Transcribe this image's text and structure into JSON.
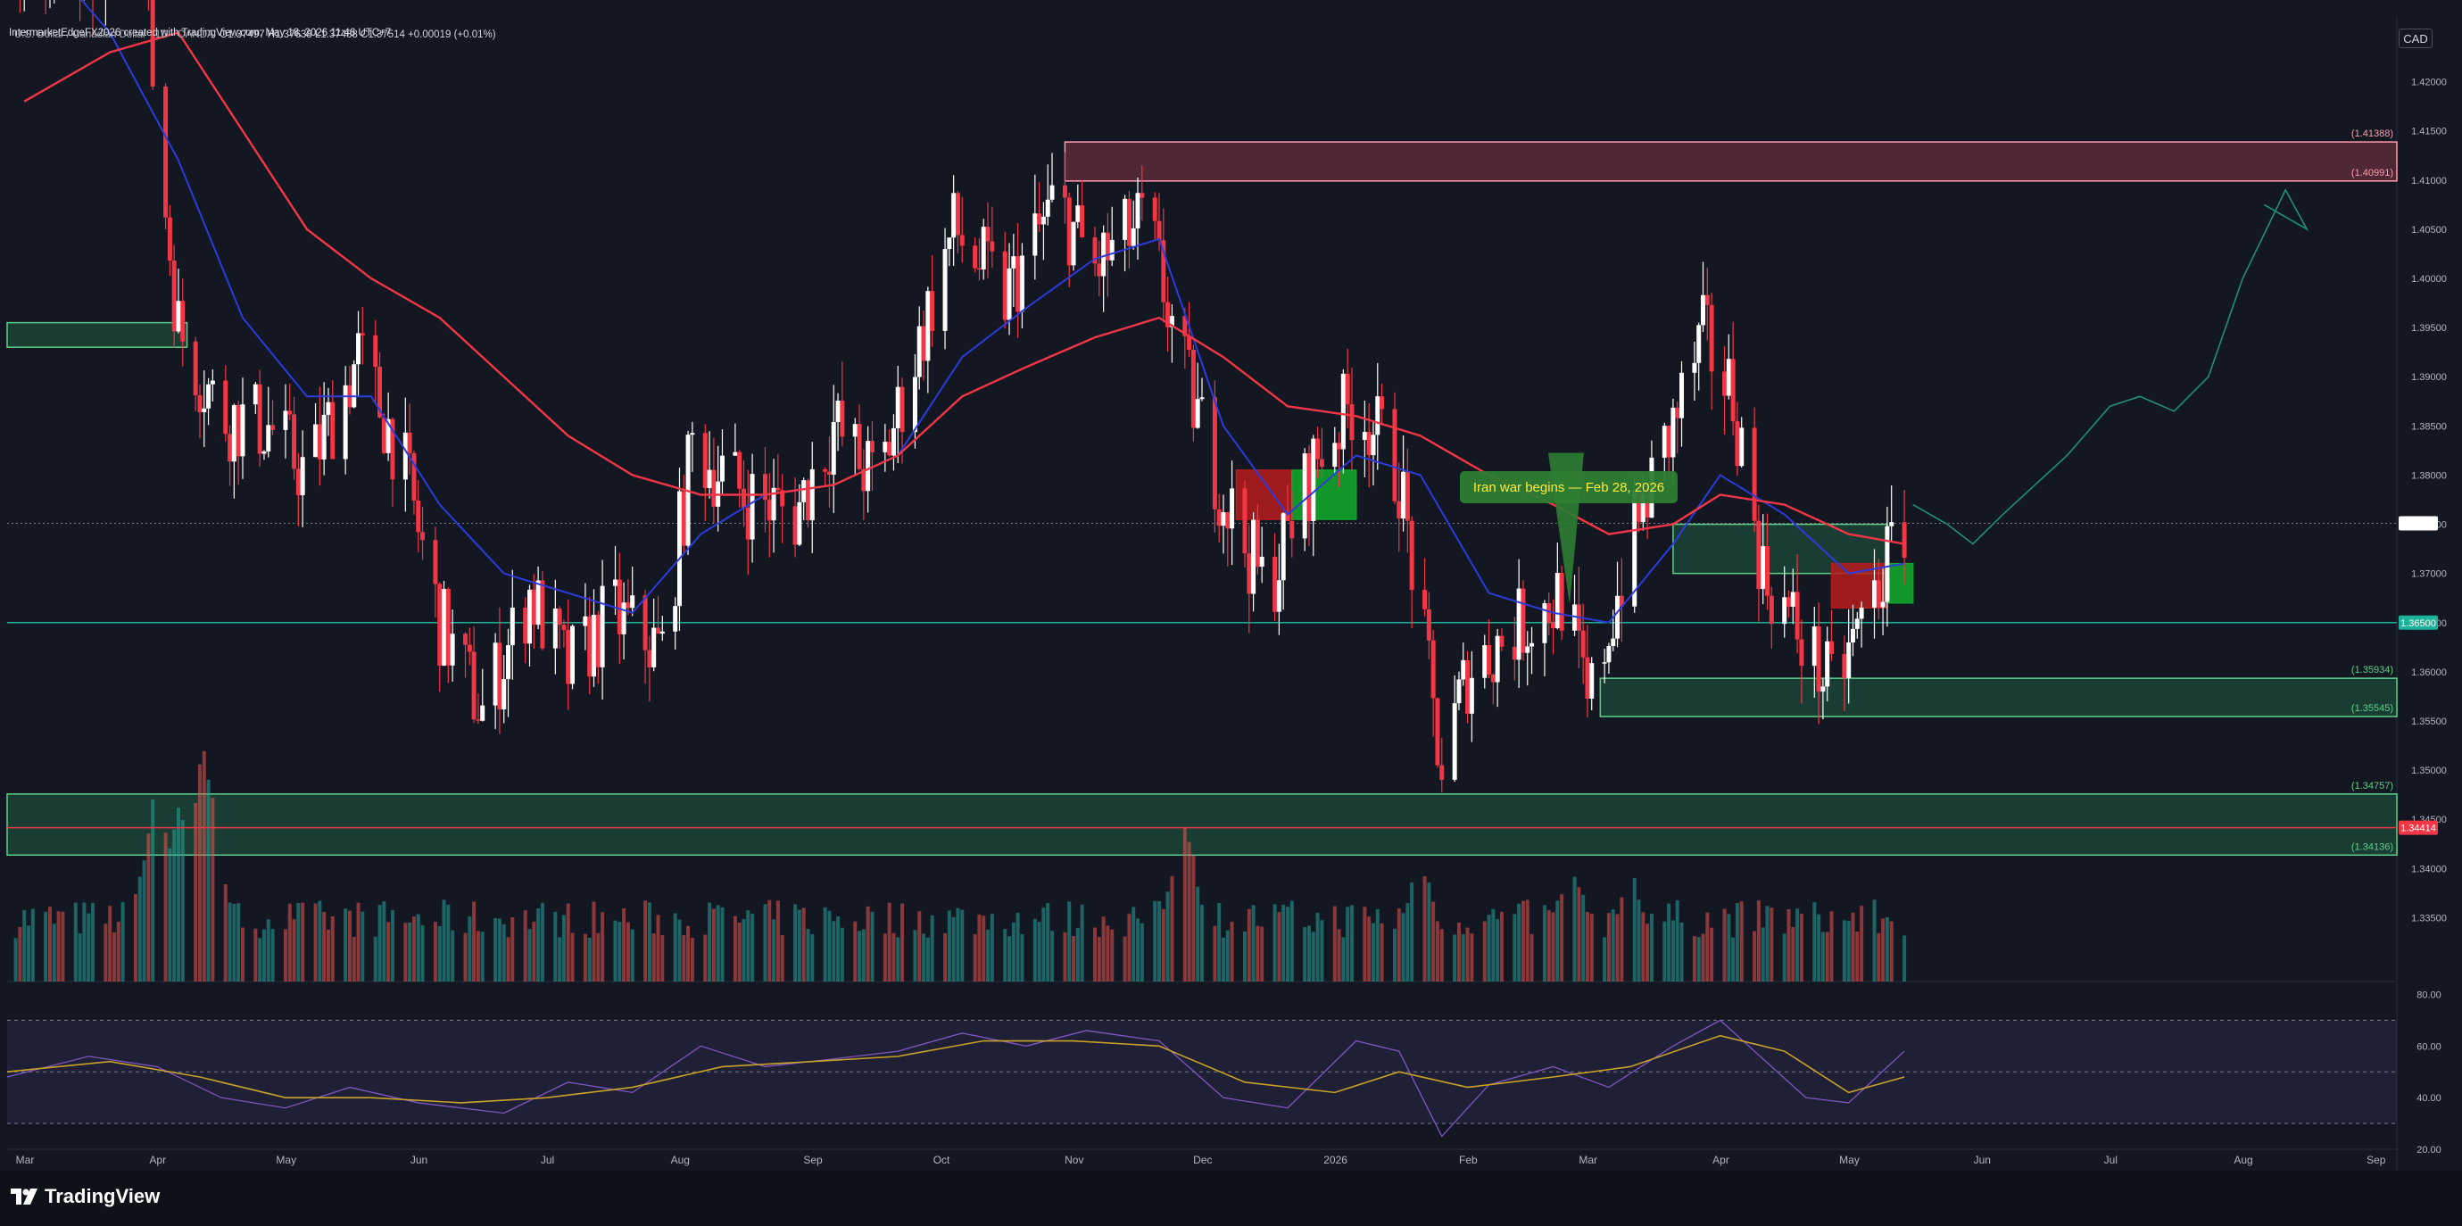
{
  "header": {
    "created_by": "IntermarketEdgeFX2026 created with TradingView.com, May 18, 2026 11:46 UTC+7",
    "symbol": "U.S. Dollar / Canadian Dollar · 1D · OANDA",
    "ohlc": "O1.37497 H1.37638 L1.37488 C1.37514 +0.00019 (+0.01%)"
  },
  "currency_button": "CAD",
  "brand": "TradingView",
  "colors": {
    "background": "#131722",
    "up_candle": "#ffffff",
    "down_candle": "#f23645",
    "ema_fast": "#2d3bdc",
    "ema_slow": "#f23645",
    "support_zone": "#1f5c3f",
    "resistance_zone": "#5c2a37",
    "rsi_line": "#7e57c2",
    "rsi_signal": "#c9a227",
    "horizontal_level": "#1cb39a"
  },
  "chart_data": {
    "type": "candlestick",
    "title": "U.S. Dollar / Canadian Dollar · 1D · OANDA",
    "price_axis": {
      "ylim": [
        1.3285,
        1.4265
      ],
      "ticks": [
        "1.42000",
        "1.41500",
        "1.41000",
        "1.40500",
        "1.40000",
        "1.39500",
        "1.39000",
        "1.38500",
        "1.38000",
        "1.37500",
        "1.37000",
        "1.36500",
        "1.36000",
        "1.35500",
        "1.35000",
        "1.34500",
        "1.34000",
        "1.33500"
      ]
    },
    "time_axis": {
      "start": "2025-03-01",
      "end": "2026-09-10",
      "ticks": [
        {
          "label": "Mar",
          "date": "2025-03-01"
        },
        {
          "label": "Apr",
          "date": "2025-04-01"
        },
        {
          "label": "May",
          "date": "2025-05-01"
        },
        {
          "label": "Jun",
          "date": "2025-06-01"
        },
        {
          "label": "Jul",
          "date": "2025-07-01"
        },
        {
          "label": "Aug",
          "date": "2025-08-01"
        },
        {
          "label": "Sep",
          "date": "2025-09-01"
        },
        {
          "label": "Oct",
          "date": "2025-10-01"
        },
        {
          "label": "Nov",
          "date": "2025-11-01"
        },
        {
          "label": "Dec",
          "date": "2025-12-01"
        },
        {
          "label": "2026",
          "date": "2026-01-01"
        },
        {
          "label": "Feb",
          "date": "2026-02-01"
        },
        {
          "label": "Mar",
          "date": "2026-03-01"
        },
        {
          "label": "Apr",
          "date": "2026-04-01"
        },
        {
          "label": "May",
          "date": "2026-05-01"
        },
        {
          "label": "Jun",
          "date": "2026-06-01"
        },
        {
          "label": "Jul",
          "date": "2026-07-01"
        },
        {
          "label": "Aug",
          "date": "2026-08-01"
        },
        {
          "label": "Sep",
          "date": "2026-09-01"
        }
      ]
    },
    "price_path": [
      [
        "2025-03-01",
        1.435
      ],
      [
        "2025-03-20",
        1.43
      ],
      [
        "2025-04-01",
        1.438
      ],
      [
        "2025-04-05",
        1.415
      ],
      [
        "2025-04-10",
        1.395
      ],
      [
        "2025-04-20",
        1.386
      ],
      [
        "2025-05-01",
        1.385
      ],
      [
        "2025-05-10",
        1.38
      ],
      [
        "2025-05-22",
        1.392
      ],
      [
        "2025-06-01",
        1.382
      ],
      [
        "2025-06-10",
        1.365
      ],
      [
        "2025-06-20",
        1.356
      ],
      [
        "2025-07-01",
        1.368
      ],
      [
        "2025-07-10",
        1.36
      ],
      [
        "2025-07-20",
        1.366
      ],
      [
        "2025-08-01",
        1.362
      ],
      [
        "2025-08-08",
        1.383
      ],
      [
        "2025-08-20",
        1.378
      ],
      [
        "2025-09-01",
        1.376
      ],
      [
        "2025-09-10",
        1.385
      ],
      [
        "2025-09-20",
        1.379
      ],
      [
        "2025-10-01",
        1.395
      ],
      [
        "2025-10-08",
        1.405
      ],
      [
        "2025-10-20",
        1.398
      ],
      [
        "2025-11-01",
        1.408
      ],
      [
        "2025-11-10",
        1.401
      ],
      [
        "2025-11-22",
        1.406
      ],
      [
        "2025-12-01",
        1.39
      ],
      [
        "2025-12-10",
        1.378
      ],
      [
        "2025-12-20",
        1.368
      ],
      [
        "2026-01-01",
        1.382
      ],
      [
        "2026-01-10",
        1.388
      ],
      [
        "2026-01-20",
        1.38
      ],
      [
        "2026-01-30",
        1.35
      ],
      [
        "2026-02-05",
        1.36
      ],
      [
        "2026-02-15",
        1.364
      ],
      [
        "2026-02-28",
        1.368
      ],
      [
        "2026-03-05",
        1.356
      ],
      [
        "2026-03-15",
        1.373
      ],
      [
        "2026-03-25",
        1.385
      ],
      [
        "2026-04-01",
        1.394
      ],
      [
        "2026-04-08",
        1.388
      ],
      [
        "2026-04-15",
        1.37
      ],
      [
        "2026-04-22",
        1.365
      ],
      [
        "2026-05-01",
        1.358
      ],
      [
        "2026-05-08",
        1.365
      ],
      [
        "2026-05-18",
        1.3751
      ]
    ],
    "ema_fast_path": [
      [
        "2025-03-05",
        1.435
      ],
      [
        "2025-03-25",
        1.425
      ],
      [
        "2025-04-10",
        1.412
      ],
      [
        "2025-04-25",
        1.396
      ],
      [
        "2025-05-10",
        1.388
      ],
      [
        "2025-05-25",
        1.388
      ],
      [
        "2025-06-10",
        1.377
      ],
      [
        "2025-06-25",
        1.37
      ],
      [
        "2025-07-10",
        1.368
      ],
      [
        "2025-07-25",
        1.366
      ],
      [
        "2025-08-10",
        1.374
      ],
      [
        "2025-08-25",
        1.378
      ],
      [
        "2025-09-10",
        1.379
      ],
      [
        "2025-09-25",
        1.382
      ],
      [
        "2025-10-10",
        1.392
      ],
      [
        "2025-10-25",
        1.397
      ],
      [
        "2025-11-10",
        1.402
      ],
      [
        "2025-11-25",
        1.404
      ],
      [
        "2025-12-10",
        1.385
      ],
      [
        "2025-12-25",
        1.376
      ],
      [
        "2026-01-10",
        1.382
      ],
      [
        "2026-01-25",
        1.38
      ],
      [
        "2026-02-10",
        1.368
      ],
      [
        "2026-02-25",
        1.366
      ],
      [
        "2026-03-10",
        1.365
      ],
      [
        "2026-03-25",
        1.373
      ],
      [
        "2026-04-05",
        1.38
      ],
      [
        "2026-04-20",
        1.376
      ],
      [
        "2026-05-05",
        1.37
      ],
      [
        "2026-05-18",
        1.371
      ]
    ],
    "ema_slow_path": [
      [
        "2025-03-05",
        1.418
      ],
      [
        "2025-03-25",
        1.423
      ],
      [
        "2025-04-10",
        1.425
      ],
      [
        "2025-04-25",
        1.415
      ],
      [
        "2025-05-10",
        1.405
      ],
      [
        "2025-05-25",
        1.4
      ],
      [
        "2025-06-10",
        1.396
      ],
      [
        "2025-06-25",
        1.39
      ],
      [
        "2025-07-10",
        1.384
      ],
      [
        "2025-07-25",
        1.38
      ],
      [
        "2025-08-10",
        1.378
      ],
      [
        "2025-08-25",
        1.378
      ],
      [
        "2025-09-10",
        1.379
      ],
      [
        "2025-09-25",
        1.382
      ],
      [
        "2025-10-10",
        1.388
      ],
      [
        "2025-10-25",
        1.391
      ],
      [
        "2025-11-10",
        1.394
      ],
      [
        "2025-11-25",
        1.396
      ],
      [
        "2025-12-10",
        1.392
      ],
      [
        "2025-12-25",
        1.387
      ],
      [
        "2026-01-10",
        1.386
      ],
      [
        "2026-01-25",
        1.384
      ],
      [
        "2026-02-10",
        1.38
      ],
      [
        "2026-02-25",
        1.377
      ],
      [
        "2026-03-10",
        1.374
      ],
      [
        "2026-03-25",
        1.375
      ],
      [
        "2026-04-05",
        1.378
      ],
      [
        "2026-04-20",
        1.377
      ],
      [
        "2026-05-05",
        1.374
      ],
      [
        "2026-05-18",
        1.373
      ]
    ],
    "zones": [
      {
        "from": "2025-11-03",
        "to": "2026-09-10",
        "top": 1.41388,
        "bottom": 1.40991,
        "kind": "resistance"
      },
      {
        "from": "2025-03-01",
        "to": "2025-04-12",
        "top": 1.3955,
        "bottom": 1.393,
        "kind": "support"
      },
      {
        "from": "2026-03-08",
        "to": "2026-09-10",
        "top": 1.35934,
        "bottom": 1.35545,
        "kind": "support"
      },
      {
        "from": "2025-03-01",
        "to": "2026-09-10",
        "top": 1.34757,
        "bottom": 1.34136,
        "kind": "support"
      },
      {
        "from": "2026-03-25",
        "to": "2026-05-14",
        "top": 1.375,
        "bottom": 1.37,
        "kind": "support"
      },
      {
        "from": "2025-12-13",
        "to": "2025-12-26",
        "top": 1.3805,
        "bottom": 1.3755,
        "kind": "demand-red"
      },
      {
        "from": "2025-12-26",
        "to": "2026-01-10",
        "top": 1.3805,
        "bottom": 1.3755,
        "kind": "demand-green"
      },
      {
        "from": "2026-05-01",
        "to": "2026-05-14",
        "top": 1.371,
        "bottom": 1.3665,
        "kind": "demand-red"
      },
      {
        "from": "2026-05-14",
        "to": "2026-05-20",
        "top": 1.371,
        "bottom": 1.367,
        "kind": "demand-green"
      }
    ],
    "levels": [
      {
        "price": 1.365,
        "label": "1.36500",
        "color": "#1cb39a",
        "style": "solid"
      },
      {
        "price": 1.34414,
        "label": "1.34414",
        "color": "#f23645",
        "style": "solid"
      },
      {
        "price": 1.3751,
        "label": "1.37514",
        "color": "#787b86",
        "style": "dotted"
      }
    ],
    "level_labels": [
      "(1.41388)",
      "(1.40991)",
      "(1.35934)",
      "(1.35545)",
      "(1.34757)",
      "(1.34136)"
    ],
    "annotation": {
      "text": "Iran war begins — Feb 28, 2026",
      "anchor_date": "2026-02-28",
      "anchor_price": 1.375
    },
    "projection_path": [
      [
        "2026-05-20",
        1.377
      ],
      [
        "2026-05-28",
        1.375
      ],
      [
        "2026-06-03",
        1.373
      ],
      [
        "2026-06-10",
        1.376
      ],
      [
        "2026-06-25",
        1.382
      ],
      [
        "2026-07-05",
        1.387
      ],
      [
        "2026-07-12",
        1.388
      ],
      [
        "2026-07-20",
        1.3865
      ],
      [
        "2026-07-28",
        1.39
      ],
      [
        "2026-08-05",
        1.4
      ],
      [
        "2026-08-15",
        1.409
      ],
      [
        "2026-08-20",
        1.405
      ],
      [
        "2026-08-10",
        1.4075
      ]
    ],
    "volume_scale_max": 100,
    "volume_peaks": [
      [
        "2025-04-05",
        78
      ],
      [
        "2025-04-10",
        68
      ],
      [
        "2025-04-16",
        95
      ],
      [
        "2025-12-01",
        63
      ],
      [
        "2026-01-25",
        48
      ],
      [
        "2026-03-01",
        45
      ],
      [
        "2026-03-15",
        42
      ]
    ],
    "rsi": {
      "ylim": [
        20,
        85
      ],
      "ticks": [
        "80.00",
        "60.00",
        "40.00",
        "20.00"
      ],
      "upper_band": 70,
      "lower_band": 30,
      "rsi_path": [
        [
          "2025-03-01",
          48
        ],
        [
          "2025-03-20",
          56
        ],
        [
          "2025-04-05",
          52
        ],
        [
          "2025-04-20",
          40
        ],
        [
          "2025-05-05",
          36
        ],
        [
          "2025-05-20",
          44
        ],
        [
          "2025-06-05",
          38
        ],
        [
          "2025-06-25",
          34
        ],
        [
          "2025-07-10",
          46
        ],
        [
          "2025-07-25",
          42
        ],
        [
          "2025-08-10",
          60
        ],
        [
          "2025-08-25",
          52
        ],
        [
          "2025-09-10",
          55
        ],
        [
          "2025-09-25",
          58
        ],
        [
          "2025-10-10",
          65
        ],
        [
          "2025-10-25",
          60
        ],
        [
          "2025-11-08",
          66
        ],
        [
          "2025-11-25",
          62
        ],
        [
          "2025-12-10",
          40
        ],
        [
          "2025-12-25",
          36
        ],
        [
          "2026-01-10",
          62
        ],
        [
          "2026-01-20",
          58
        ],
        [
          "2026-01-30",
          25
        ],
        [
          "2026-02-10",
          45
        ],
        [
          "2026-02-25",
          52
        ],
        [
          "2026-03-10",
          44
        ],
        [
          "2026-03-25",
          60
        ],
        [
          "2026-04-05",
          70
        ],
        [
          "2026-04-15",
          55
        ],
        [
          "2026-04-25",
          40
        ],
        [
          "2026-05-05",
          38
        ],
        [
          "2026-05-18",
          58
        ]
      ],
      "signal_path": [
        [
          "2025-03-01",
          50
        ],
        [
          "2025-03-25",
          54
        ],
        [
          "2025-04-15",
          48
        ],
        [
          "2025-05-05",
          40
        ],
        [
          "2025-05-25",
          40
        ],
        [
          "2025-06-15",
          38
        ],
        [
          "2025-07-05",
          40
        ],
        [
          "2025-07-25",
          44
        ],
        [
          "2025-08-15",
          52
        ],
        [
          "2025-09-05",
          54
        ],
        [
          "2025-09-25",
          56
        ],
        [
          "2025-10-15",
          62
        ],
        [
          "2025-11-05",
          62
        ],
        [
          "2025-11-25",
          60
        ],
        [
          "2025-12-15",
          46
        ],
        [
          "2026-01-05",
          42
        ],
        [
          "2026-01-20",
          50
        ],
        [
          "2026-02-05",
          44
        ],
        [
          "2026-02-25",
          48
        ],
        [
          "2026-03-15",
          52
        ],
        [
          "2026-04-05",
          64
        ],
        [
          "2026-04-20",
          58
        ],
        [
          "2026-05-05",
          42
        ],
        [
          "2026-05-18",
          48
        ]
      ]
    }
  }
}
